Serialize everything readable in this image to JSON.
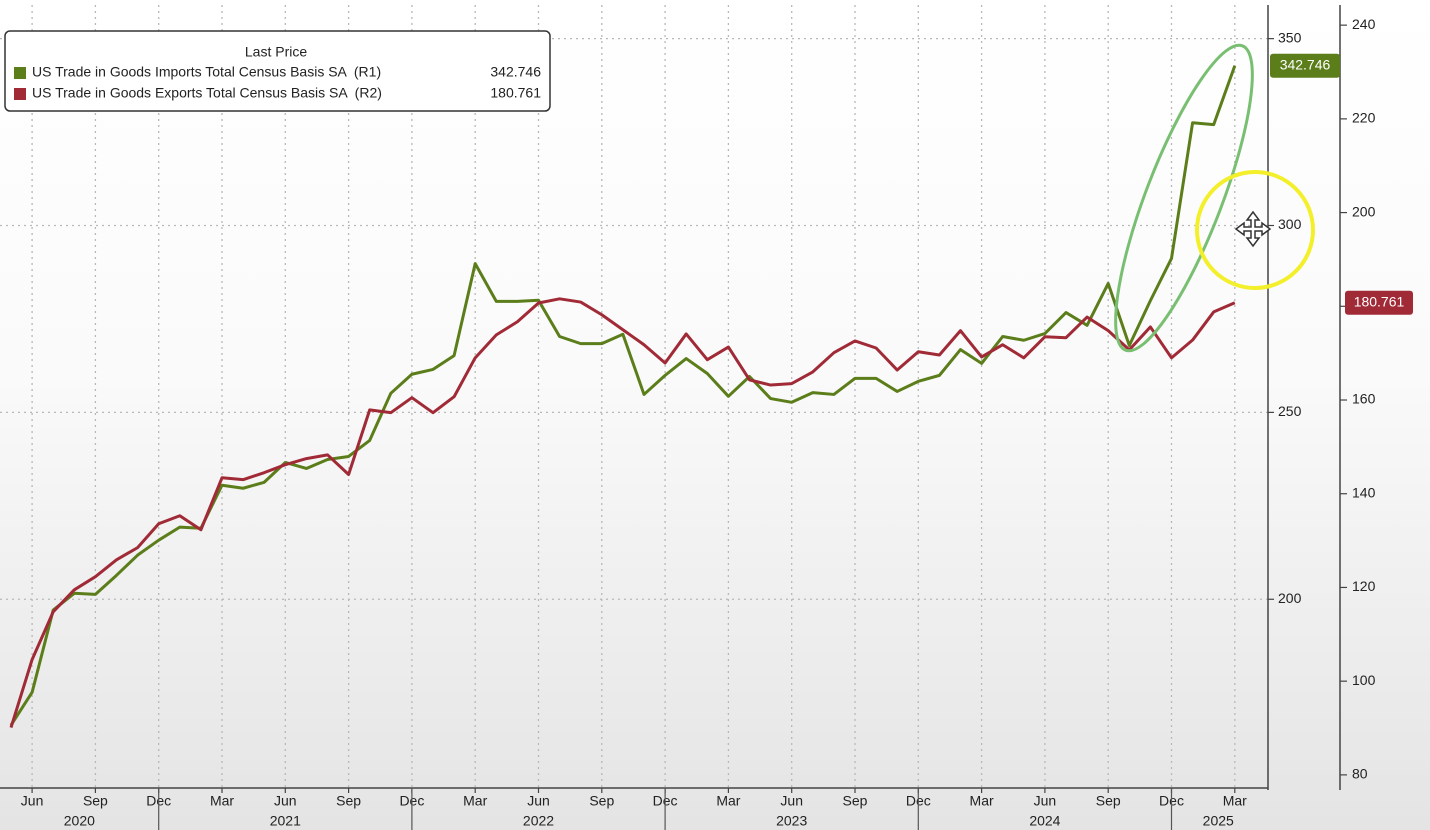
{
  "chart_data": {
    "type": "line",
    "legend_title": "Last Price",
    "x": [
      "2020-05",
      "2020-06",
      "2020-07",
      "2020-08",
      "2020-09",
      "2020-10",
      "2020-11",
      "2020-12",
      "2021-01",
      "2021-02",
      "2021-03",
      "2021-04",
      "2021-05",
      "2021-06",
      "2021-07",
      "2021-08",
      "2021-09",
      "2021-10",
      "2021-11",
      "2021-12",
      "2022-01",
      "2022-02",
      "2022-03",
      "2022-04",
      "2022-05",
      "2022-06",
      "2022-07",
      "2022-08",
      "2022-09",
      "2022-10",
      "2022-11",
      "2022-12",
      "2023-01",
      "2023-02",
      "2023-03",
      "2023-04",
      "2023-05",
      "2023-06",
      "2023-07",
      "2023-08",
      "2023-09",
      "2023-10",
      "2023-11",
      "2023-12",
      "2024-01",
      "2024-02",
      "2024-03",
      "2024-04",
      "2024-05",
      "2024-06",
      "2024-07",
      "2024-08",
      "2024-09",
      "2024-10",
      "2024-11",
      "2024-12",
      "2025-01",
      "2025-02",
      "2025-03"
    ],
    "series": [
      {
        "name": "US Trade in Goods Imports Total Census Basis SA  (R1)",
        "color": "#5b7d1a",
        "axis": "y",
        "values": [
          166.3,
          175.1,
          197.1,
          201.6,
          201.3,
          206.4,
          211.8,
          215.8,
          219.3,
          219.0,
          230.5,
          229.7,
          231.3,
          236.6,
          235.0,
          237.4,
          238.2,
          242.5,
          255.1,
          260.2,
          261.5,
          265.2,
          289.8,
          279.7,
          279.7,
          280.0,
          270.3,
          268.4,
          268.4,
          270.9,
          254.8,
          259.9,
          264.4,
          260.4,
          254.3,
          259.6,
          253.7,
          252.7,
          255.3,
          254.8,
          259.1,
          259.1,
          255.6,
          258.3,
          259.9,
          266.8,
          263.1,
          270.3,
          269.3,
          271.1,
          276.7,
          273.3,
          284.5,
          267.9,
          279.9,
          291.2,
          327.5,
          327.0,
          342.746
        ]
      },
      {
        "name": "US Trade in Goods Exports Total Census Basis SA  (R2)",
        "color": "#a12a37",
        "axis": "y2",
        "values": [
          90.1,
          104.6,
          114.8,
          119.5,
          122.3,
          125.9,
          128.5,
          133.6,
          135.3,
          132.3,
          143.4,
          143.0,
          144.5,
          146.2,
          147.5,
          148.3,
          144.1,
          157.9,
          157.3,
          160.5,
          157.3,
          160.7,
          169.0,
          173.9,
          176.7,
          180.7,
          181.6,
          180.9,
          178.2,
          175.0,
          171.8,
          167.9,
          174.1,
          168.6,
          171.3,
          164.3,
          163.2,
          163.5,
          166.0,
          170.1,
          172.6,
          171.1,
          166.4,
          170.3,
          169.6,
          174.8,
          169.2,
          171.8,
          169.0,
          173.5,
          173.3,
          177.7,
          174.8,
          170.7,
          175.6,
          169.0,
          172.8,
          178.8,
          180.761
        ]
      }
    ],
    "ylim": [
      149.5,
      359
    ],
    "yticks": [
      200,
      250,
      300,
      350
    ],
    "y2lim": [
      77.2,
      244.3
    ],
    "y2ticks": [
      80,
      100,
      120,
      140,
      160,
      180,
      200,
      220,
      240
    ],
    "xticks": [
      {
        "value": "2020-06",
        "label": "Jun"
      },
      {
        "value": "2020-09",
        "label": "Sep"
      },
      {
        "value": "2020-12",
        "label": "Dec"
      },
      {
        "value": "2021-03",
        "label": "Mar"
      },
      {
        "value": "2021-06",
        "label": "Jun"
      },
      {
        "value": "2021-09",
        "label": "Sep"
      },
      {
        "value": "2021-12",
        "label": "Dec"
      },
      {
        "value": "2022-03",
        "label": "Mar"
      },
      {
        "value": "2022-06",
        "label": "Jun"
      },
      {
        "value": "2022-09",
        "label": "Sep"
      },
      {
        "value": "2022-12",
        "label": "Dec"
      },
      {
        "value": "2023-03",
        "label": "Mar"
      },
      {
        "value": "2023-06",
        "label": "Jun"
      },
      {
        "value": "2023-09",
        "label": "Sep"
      },
      {
        "value": "2023-12",
        "label": "Dec"
      },
      {
        "value": "2024-03",
        "label": "Mar"
      },
      {
        "value": "2024-06",
        "label": "Jun"
      },
      {
        "value": "2024-09",
        "label": "Sep"
      },
      {
        "value": "2024-12",
        "label": "Dec"
      },
      {
        "value": "2025-03",
        "label": "Mar"
      }
    ],
    "year_labels": [
      "2020",
      "2021",
      "2022",
      "2023",
      "2024",
      "2025"
    ],
    "grid": true
  }
}
